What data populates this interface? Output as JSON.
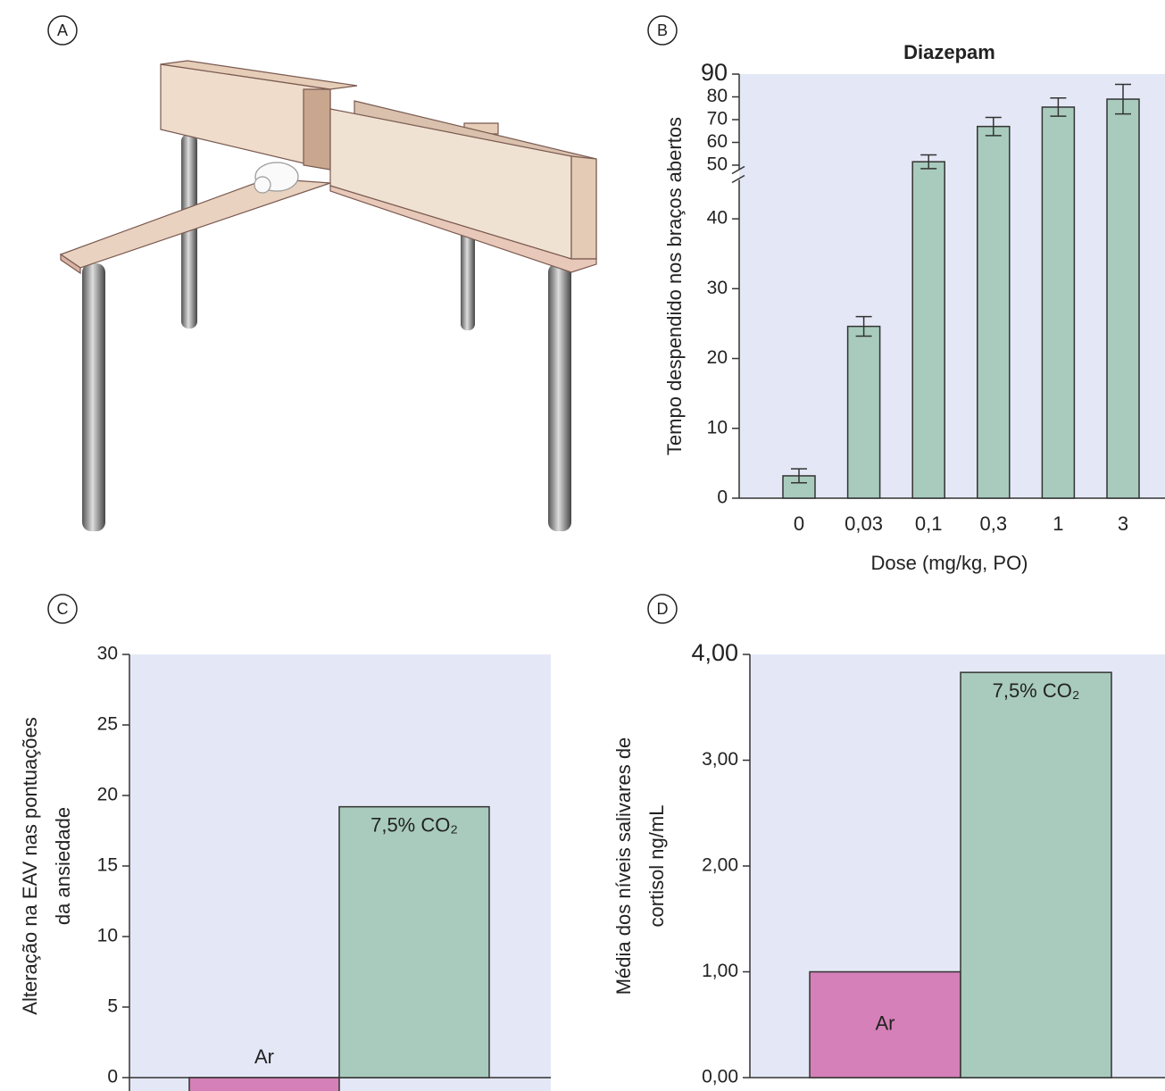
{
  "panel_labels": [
    "A",
    "B",
    "C",
    "D"
  ],
  "chart_data": [
    {
      "type": "bar",
      "title": "Diazepam",
      "xlabel": "Dose (mg/kg, PO)",
      "ylabel": [
        "Tempo despendido nos braços abertos"
      ],
      "categories": [
        "0",
        "0,03",
        "0,1",
        "0,3",
        "1",
        "3"
      ],
      "values": [
        3.2,
        24.6,
        51.5,
        67,
        75.5,
        79
      ],
      "errors": [
        1,
        1.4,
        3,
        4,
        4,
        6.5
      ],
      "color": "#a8cbbd",
      "ylim": [
        0,
        90
      ],
      "ybreak": [
        45,
        50
      ],
      "yticks": [
        0,
        10,
        20,
        30,
        40,
        50,
        60,
        70,
        80,
        90
      ]
    },
    {
      "type": "bar",
      "ylabel": [
        "Alteração na EAV nas pontuações",
        "da ansiedade"
      ],
      "categories": [
        "Ar",
        "7,5% CO₂"
      ],
      "values": [
        -1,
        19.2
      ],
      "colors": [
        "#d580b8",
        "#a8cbbd"
      ],
      "ylim": [
        -1,
        30
      ],
      "yticks": [
        0,
        5,
        10,
        15,
        20,
        25,
        30
      ]
    },
    {
      "type": "bar",
      "ylabel": [
        "Média dos níveis salivares de",
        "cortisol ng/mL"
      ],
      "categories": [
        "Ar",
        "7,5% CO₂"
      ],
      "values": [
        1.0,
        3.83
      ],
      "colors": [
        "#d580b8",
        "#a8cbbd"
      ],
      "ylim": [
        0,
        4
      ],
      "yticks": [
        {
          "value": 0,
          "label": "0,00"
        },
        {
          "value": 1,
          "label": "1,00"
        },
        {
          "value": 2,
          "label": "2,00"
        },
        {
          "value": 3,
          "label": "3,00"
        },
        {
          "value": 4,
          "label": "4,00"
        }
      ]
    }
  ]
}
